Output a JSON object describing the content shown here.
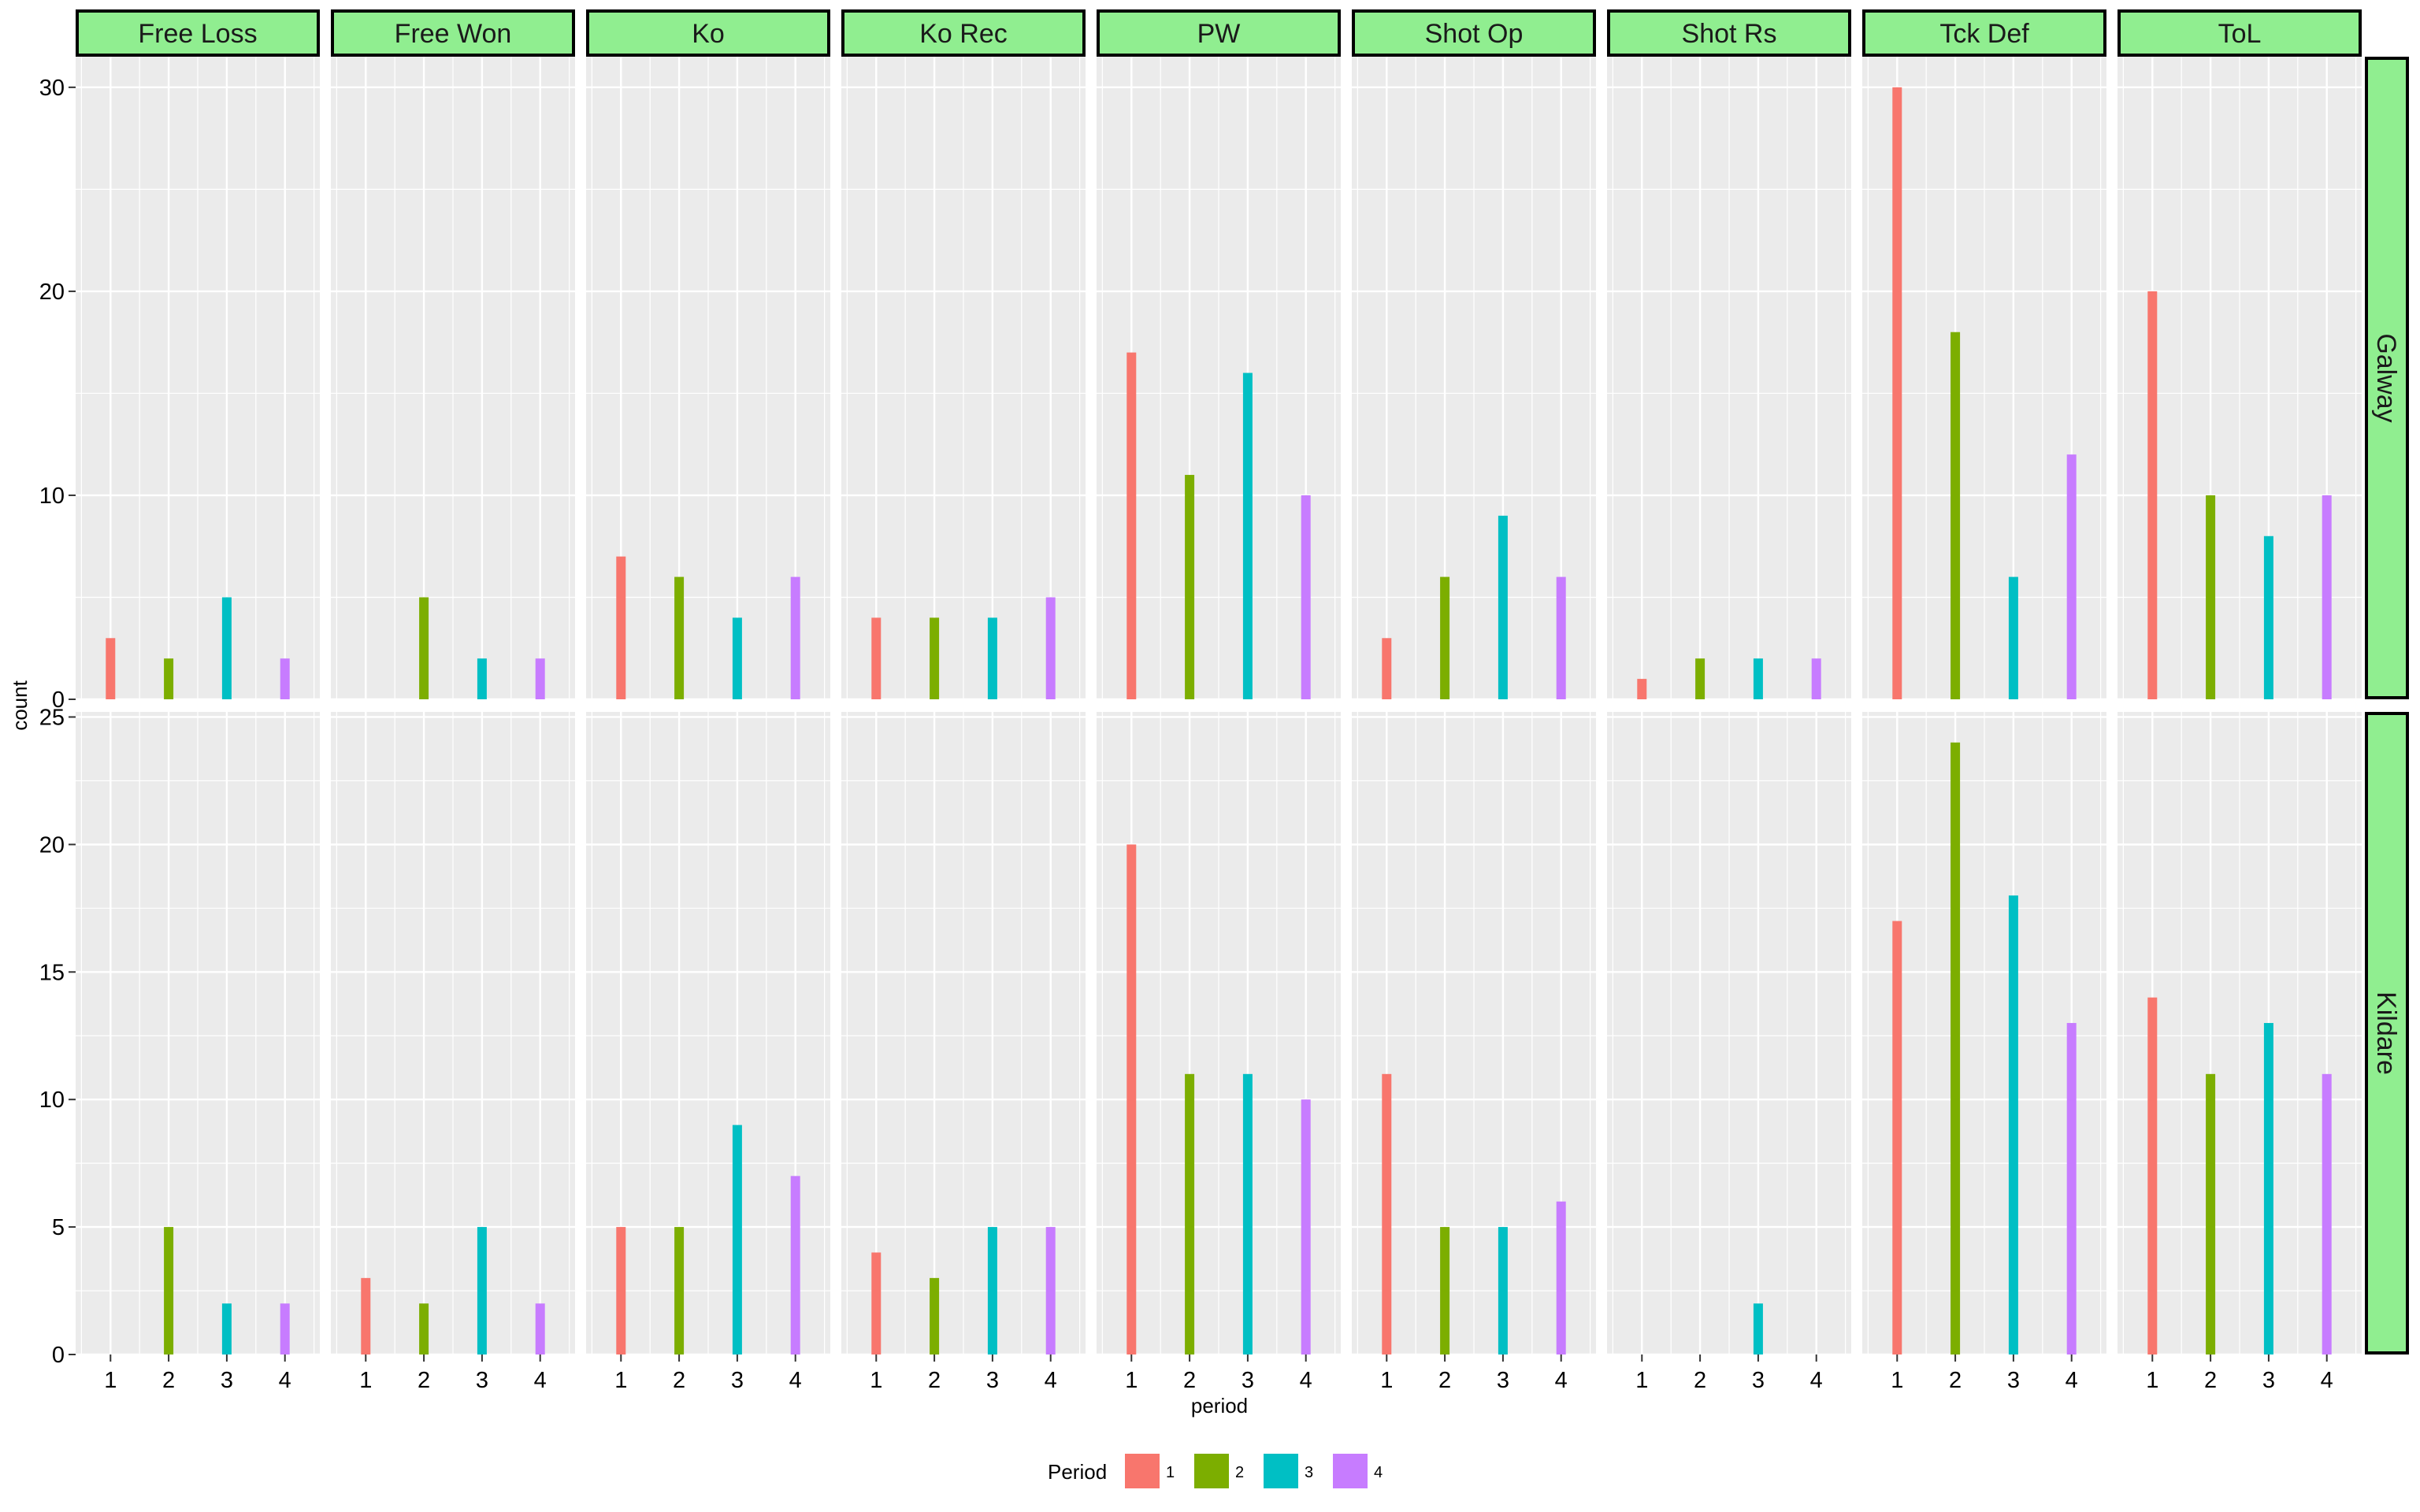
{
  "chart_data": {
    "type": "bar",
    "facet_columns": [
      "Free Loss",
      "Free Won",
      "Ko",
      "Ko Rec",
      "PW",
      "Shot Op",
      "Shot Rs",
      "Tck Def",
      "ToL"
    ],
    "facet_rows": [
      "Galway",
      "Kildare"
    ],
    "x": [
      "1",
      "2",
      "3",
      "4"
    ],
    "xlabel": "period",
    "ylabel": "count",
    "legend": {
      "title": "Period",
      "position": "bottom",
      "entries": [
        {
          "label": "1",
          "color": "#F8766D"
        },
        {
          "label": "2",
          "color": "#7CAE00"
        },
        {
          "label": "3",
          "color": "#00BFC4"
        },
        {
          "label": "4",
          "color": "#C77CFF"
        }
      ]
    },
    "rows": [
      {
        "team": "Galway",
        "ylim": [
          0,
          31.5
        ],
        "yticks": [
          0,
          10,
          20,
          30
        ],
        "values": {
          "Free Loss": [
            3,
            2,
            5,
            2
          ],
          "Free Won": [
            0,
            5,
            2,
            2
          ],
          "Ko": [
            7,
            6,
            4,
            6
          ],
          "Ko Rec": [
            4,
            4,
            4,
            5
          ],
          "PW": [
            17,
            11,
            16,
            10
          ],
          "Shot Op": [
            3,
            6,
            9,
            6
          ],
          "Shot Rs": [
            1,
            2,
            2,
            2
          ],
          "Tck Def": [
            30,
            18,
            6,
            12
          ],
          "ToL": [
            20,
            10,
            8,
            10
          ]
        }
      },
      {
        "team": "Kildare",
        "ylim": [
          0,
          25.2
        ],
        "yticks": [
          0,
          5,
          10,
          15,
          20,
          25
        ],
        "values": {
          "Free Loss": [
            0,
            5,
            2,
            2
          ],
          "Free Won": [
            3,
            2,
            5,
            2
          ],
          "Ko": [
            5,
            5,
            9,
            7
          ],
          "Ko Rec": [
            4,
            3,
            5,
            5
          ],
          "PW": [
            20,
            11,
            11,
            10
          ],
          "Shot Op": [
            11,
            5,
            5,
            6
          ],
          "Shot Rs": [
            0,
            0,
            2,
            0
          ],
          "Tck Def": [
            17,
            24,
            18,
            13
          ],
          "ToL": [
            14,
            11,
            13,
            11
          ]
        }
      }
    ],
    "grid": true
  },
  "colors": {
    "panel_bg": "#EBEBEB",
    "grid": "#FFFFFF",
    "strip_bg": "#90EE90",
    "strip_border": "#000000"
  }
}
